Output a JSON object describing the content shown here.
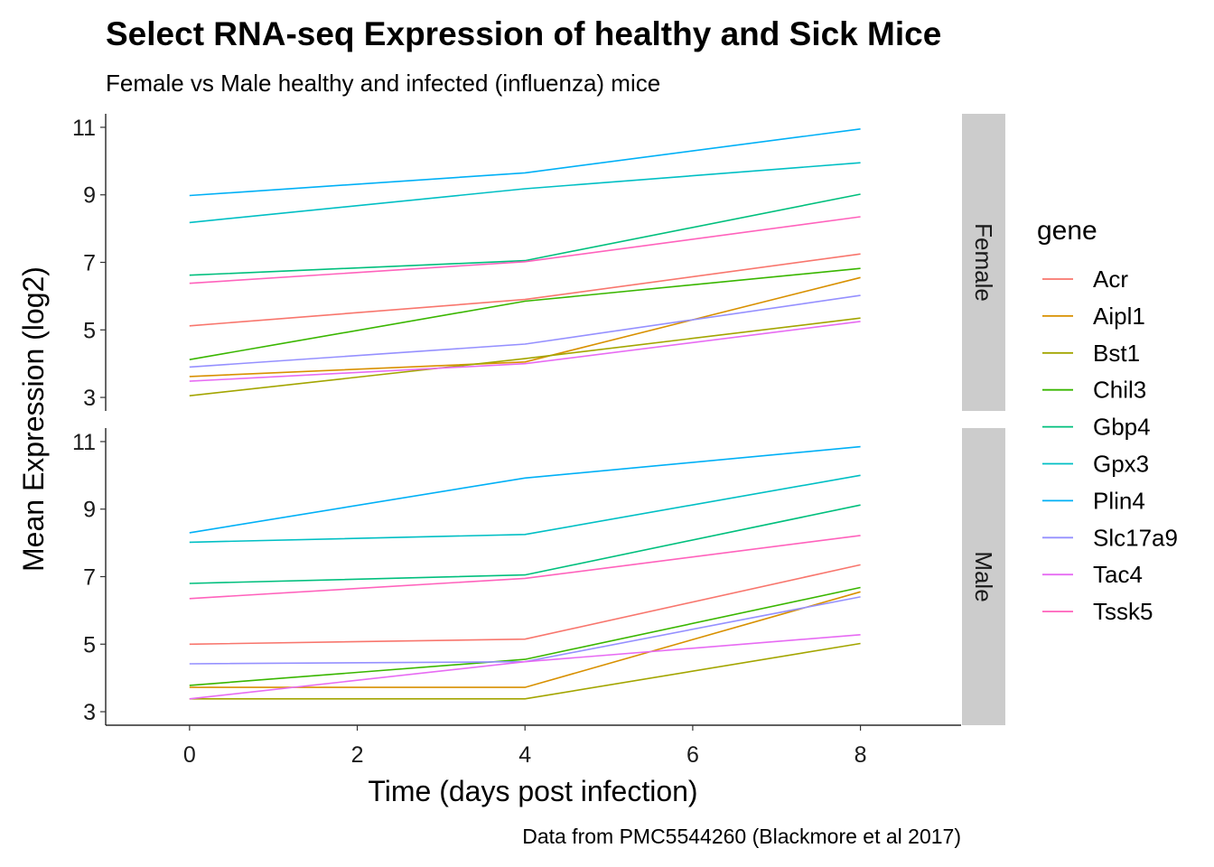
{
  "chart_data": {
    "type": "line",
    "title": "Select RNA-seq Expression of healthy and Sick Mice",
    "subtitle": "Female vs Male healthy and infected (influenza) mice",
    "caption": "Data from PMC5544260 (Blackmore et al 2017)",
    "xlabel": "Time (days post infection)",
    "ylabel": "Mean Expression (log2)",
    "x": [
      0,
      4,
      8
    ],
    "xticks": [
      0,
      2,
      4,
      6,
      8
    ],
    "yticks": [
      3,
      5,
      7,
      9,
      11
    ],
    "xlim": [
      -1,
      9.2
    ],
    "ylim": [
      2.6,
      11.4
    ],
    "legend": {
      "title": "gene",
      "position": "right"
    },
    "genes": [
      {
        "name": "Acr",
        "color": "#F8766D"
      },
      {
        "name": "Aipl1",
        "color": "#D89000"
      },
      {
        "name": "Bst1",
        "color": "#A3A500"
      },
      {
        "name": "Chil3",
        "color": "#39B600"
      },
      {
        "name": "Gbp4",
        "color": "#00BF7D"
      },
      {
        "name": "Gpx3",
        "color": "#00BFC4"
      },
      {
        "name": "Plin4",
        "color": "#00B0F6"
      },
      {
        "name": "Slc17a9",
        "color": "#9590FF"
      },
      {
        "name": "Tac4",
        "color": "#E76BF3"
      },
      {
        "name": "Tssk5",
        "color": "#FF62BC"
      }
    ],
    "panels": [
      {
        "label": "Female",
        "series": [
          {
            "name": "Acr",
            "values": [
              5.12,
              5.9,
              7.25
            ]
          },
          {
            "name": "Aipl1",
            "values": [
              3.62,
              4.05,
              6.55
            ]
          },
          {
            "name": "Bst1",
            "values": [
              3.05,
              4.15,
              5.35
            ]
          },
          {
            "name": "Chil3",
            "values": [
              4.12,
              5.85,
              6.82
            ]
          },
          {
            "name": "Gbp4",
            "values": [
              6.62,
              7.05,
              9.02
            ]
          },
          {
            "name": "Gpx3",
            "values": [
              8.18,
              9.18,
              9.95
            ]
          },
          {
            "name": "Plin4",
            "values": [
              8.98,
              9.65,
              10.95
            ]
          },
          {
            "name": "Slc17a9",
            "values": [
              3.9,
              4.58,
              6.02
            ]
          },
          {
            "name": "Tac4",
            "values": [
              3.48,
              4.0,
              5.25
            ]
          },
          {
            "name": "Tssk5",
            "values": [
              6.38,
              7.02,
              8.35
            ]
          }
        ]
      },
      {
        "label": "Male",
        "series": [
          {
            "name": "Acr",
            "values": [
              5.0,
              5.15,
              7.35
            ]
          },
          {
            "name": "Aipl1",
            "values": [
              3.72,
              3.72,
              6.55
            ]
          },
          {
            "name": "Bst1",
            "values": [
              3.38,
              3.38,
              5.02
            ]
          },
          {
            "name": "Chil3",
            "values": [
              3.78,
              4.55,
              6.68
            ]
          },
          {
            "name": "Gbp4",
            "values": [
              6.8,
              7.05,
              9.12
            ]
          },
          {
            "name": "Gpx3",
            "values": [
              8.02,
              8.25,
              10.0
            ]
          },
          {
            "name": "Plin4",
            "values": [
              8.3,
              9.92,
              10.85
            ]
          },
          {
            "name": "Slc17a9",
            "values": [
              4.42,
              4.48,
              6.4
            ]
          },
          {
            "name": "Tac4",
            "values": [
              3.38,
              4.48,
              5.28
            ]
          },
          {
            "name": "Tssk5",
            "values": [
              6.35,
              6.95,
              8.22
            ]
          }
        ]
      }
    ]
  }
}
